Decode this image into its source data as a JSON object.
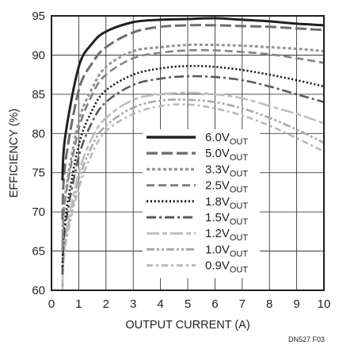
{
  "chart_data": {
    "type": "line",
    "xlabel": "OUTPUT CURRENT (A)",
    "ylabel": "EFFICIENCY (%)",
    "xlim": [
      0,
      10
    ],
    "ylim": [
      60,
      95
    ],
    "xticks": [
      "0",
      "1",
      "2",
      "3",
      "4",
      "5",
      "6",
      "7",
      "8",
      "9",
      "10"
    ],
    "yticks": [
      "60",
      "65",
      "70",
      "75",
      "80",
      "85",
      "90",
      "95"
    ],
    "grid": true,
    "legend_position": "lower-middle",
    "x": [
      0.4,
      0.5,
      1,
      1.5,
      2,
      3,
      4,
      5,
      6,
      7,
      8,
      9,
      10
    ],
    "series": [
      {
        "name": "6.0V",
        "subscript": "OUT",
        "color": "#231f20",
        "dash": "solid",
        "values": [
          74.0,
          79.5,
          88.5,
          91.5,
          93.0,
          94.2,
          94.5,
          94.6,
          94.7,
          94.5,
          94.3,
          94.0,
          93.8
        ]
      },
      {
        "name": "5.0V",
        "subscript": "OUT",
        "color": "#6d6e71",
        "dash": "long",
        "values": [
          69.0,
          76.0,
          85.5,
          89.0,
          91.0,
          92.9,
          93.6,
          93.8,
          93.8,
          93.7,
          93.6,
          93.4,
          93.2
        ]
      },
      {
        "name": "3.3V",
        "subscript": "OUT",
        "color": "#939598",
        "dash": "short",
        "values": [
          66.0,
          72.0,
          81.5,
          85.8,
          88.5,
          90.5,
          91.0,
          91.3,
          91.3,
          91.2,
          91.0,
          90.8,
          90.5
        ]
      },
      {
        "name": "2.5V",
        "subscript": "OUT",
        "color": "#808285",
        "dash": "medium",
        "values": [
          65.0,
          71.5,
          80.5,
          85.0,
          87.5,
          89.6,
          90.3,
          90.6,
          90.6,
          90.4,
          90.1,
          89.6,
          89.0
        ]
      },
      {
        "name": "1.8V",
        "subscript": "OUT",
        "color": "#231f20",
        "dash": "dot",
        "values": [
          63.0,
          69.0,
          78.5,
          83.0,
          85.5,
          87.5,
          88.3,
          88.6,
          88.5,
          88.1,
          87.5,
          86.8,
          86.0
        ]
      },
      {
        "name": "1.5V",
        "subscript": "OUT",
        "color": "#58595b",
        "dash": "dashdot",
        "values": [
          62.0,
          68.0,
          77.0,
          81.5,
          84.0,
          86.2,
          87.0,
          87.3,
          87.2,
          86.8,
          86.0,
          85.0,
          84.0
        ]
      },
      {
        "name": "1.2V",
        "subscript": "OUT",
        "color": "#bcbec0",
        "dash": "longshort",
        "values": [
          61.0,
          66.5,
          75.0,
          79.5,
          82.0,
          84.3,
          85.0,
          85.2,
          85.0,
          84.5,
          83.5,
          82.5,
          81.3
        ]
      },
      {
        "name": "1.0V",
        "subscript": "OUT",
        "color": "#a7a9ac",
        "dash": "dashdotdot",
        "values": [
          60.5,
          66.0,
          74.0,
          78.5,
          81.0,
          83.3,
          84.2,
          84.3,
          84.0,
          83.2,
          82.0,
          80.5,
          78.8
        ]
      },
      {
        "name": "0.9V",
        "subscript": "OUT",
        "color": "#b8babc",
        "dash": "dashdot2",
        "values": [
          60.0,
          65.5,
          73.0,
          77.5,
          80.3,
          82.5,
          83.5,
          83.7,
          83.2,
          82.3,
          81.0,
          79.4,
          77.7
        ]
      }
    ]
  },
  "figure_id": "DN527 F03"
}
